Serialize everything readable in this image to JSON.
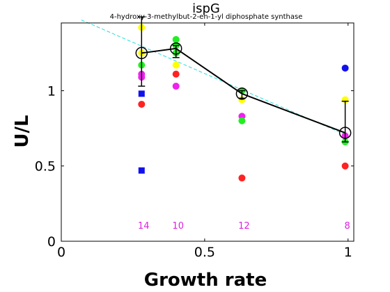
{
  "chart_data": {
    "type": "scatter",
    "title": "ispG",
    "subtitle": "4-hydroxy-3-methylbut-2-en-1-yl diphosphate synthase",
    "xlabel": "Growth rate",
    "ylabel": "U/L",
    "xlim": [
      0,
      1.02
    ],
    "ylim": [
      0,
      1.45
    ],
    "xticks": [
      0,
      0.5,
      1
    ],
    "xtick_labels": [
      "0",
      "0.5",
      "1"
    ],
    "yticks": [
      0,
      0.5,
      1
    ],
    "ytick_labels": [
      "0",
      "0.5",
      "1"
    ],
    "grid": false,
    "colors": {
      "yellow": "#ffff00",
      "green": "#22ee22",
      "magenta": "#ee22ee",
      "red": "#ff2222",
      "blue": "#1111ee",
      "fit": "#22dddd",
      "count": "#dd22dd"
    },
    "points": [
      {
        "x": 0.28,
        "y": 1.42,
        "color": "yellow",
        "marker": "circle"
      },
      {
        "x": 0.28,
        "y": 1.25,
        "color": "yellow",
        "marker": "circle"
      },
      {
        "x": 0.28,
        "y": 1.17,
        "color": "green",
        "marker": "circle"
      },
      {
        "x": 0.28,
        "y": 1.11,
        "color": "magenta",
        "marker": "circle"
      },
      {
        "x": 0.28,
        "y": 1.09,
        "color": "magenta",
        "marker": "circle"
      },
      {
        "x": 0.28,
        "y": 0.91,
        "color": "red",
        "marker": "circle"
      },
      {
        "x": 0.28,
        "y": 0.98,
        "color": "blue",
        "marker": "square"
      },
      {
        "x": 0.28,
        "y": 0.47,
        "color": "blue",
        "marker": "square"
      },
      {
        "x": 0.4,
        "y": 1.34,
        "color": "green",
        "marker": "circle"
      },
      {
        "x": 0.4,
        "y": 1.3,
        "color": "green",
        "marker": "circle"
      },
      {
        "x": 0.4,
        "y": 1.25,
        "color": "green",
        "marker": "circle"
      },
      {
        "x": 0.4,
        "y": 1.17,
        "color": "yellow",
        "marker": "circle"
      },
      {
        "x": 0.4,
        "y": 1.11,
        "color": "red",
        "marker": "circle"
      },
      {
        "x": 0.4,
        "y": 1.03,
        "color": "magenta",
        "marker": "circle"
      },
      {
        "x": 0.63,
        "y": 1.0,
        "color": "green",
        "marker": "circle"
      },
      {
        "x": 0.63,
        "y": 0.94,
        "color": "yellow",
        "marker": "circle"
      },
      {
        "x": 0.63,
        "y": 0.83,
        "color": "magenta",
        "marker": "circle"
      },
      {
        "x": 0.63,
        "y": 0.8,
        "color": "green",
        "marker": "circle"
      },
      {
        "x": 0.63,
        "y": 0.42,
        "color": "red",
        "marker": "circle"
      },
      {
        "x": 0.99,
        "y": 1.15,
        "color": "blue",
        "marker": "circle"
      },
      {
        "x": 0.99,
        "y": 0.94,
        "color": "yellow",
        "marker": "circle"
      },
      {
        "x": 0.99,
        "y": 0.7,
        "color": "magenta",
        "marker": "circle"
      },
      {
        "x": 0.99,
        "y": 0.66,
        "color": "green",
        "marker": "circle"
      },
      {
        "x": 0.99,
        "y": 0.5,
        "color": "red",
        "marker": "circle"
      }
    ],
    "mean_series": {
      "x": [
        0.28,
        0.4,
        0.63,
        0.99
      ],
      "y": [
        1.25,
        1.28,
        0.98,
        0.72
      ],
      "err_low": [
        1.03,
        1.22,
        0.95,
        0.66
      ],
      "err_high": [
        1.49,
        1.3,
        1.0,
        0.93
      ]
    },
    "fit_line": {
      "x": [
        0.07,
        1.0
      ],
      "y": [
        1.47,
        0.7
      ]
    },
    "counts": [
      {
        "x": 0.28,
        "label": "14"
      },
      {
        "x": 0.4,
        "label": "10"
      },
      {
        "x": 0.63,
        "label": "12"
      },
      {
        "x": 0.99,
        "label": "8"
      }
    ]
  }
}
